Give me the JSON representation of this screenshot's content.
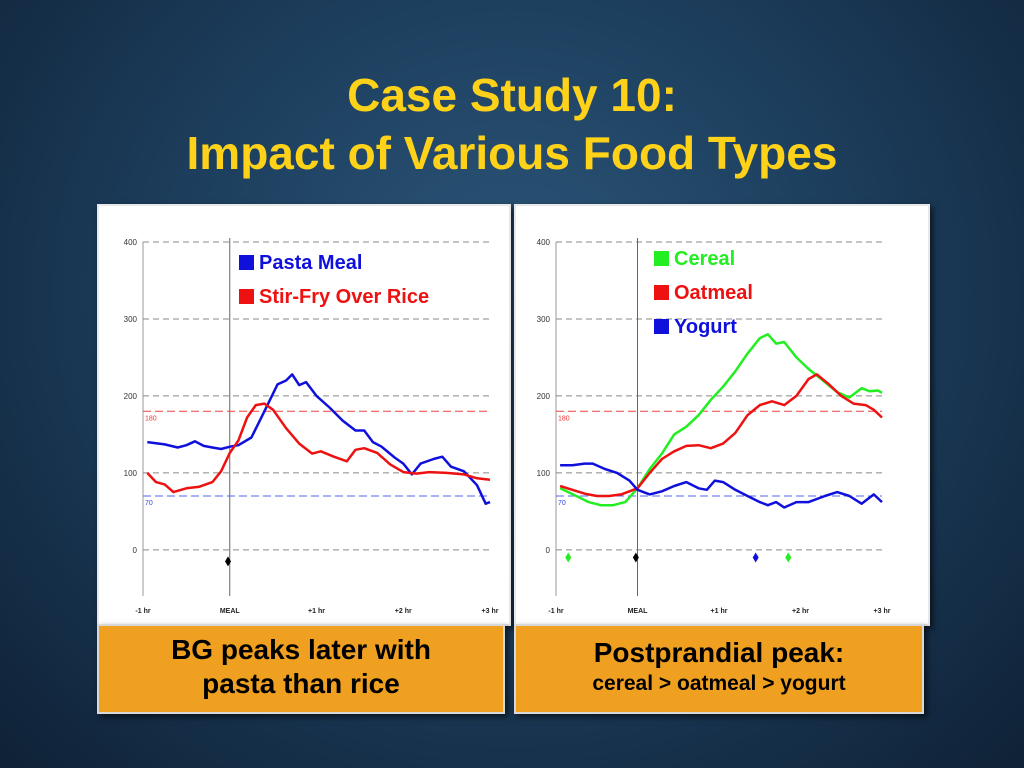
{
  "slide": {
    "title_line1": "Case Study 10:",
    "title_line2": "Impact of Various Food Types",
    "caption_left_line1": "BG peaks later with",
    "caption_left_line2": "pasta than rice",
    "caption_right_line1": "Postprandial peak:",
    "caption_right_line2": "cereal > oatmeal > yogurt"
  },
  "colors": {
    "title": "#ffd21a",
    "blue": "#1010dd",
    "red": "#ee1111",
    "green": "#22ee22",
    "caption_bg": "#f0a020"
  },
  "chart_data": [
    {
      "type": "line",
      "x_unit": "hours relative to meal",
      "xlim": [
        -1,
        3
      ],
      "ylim": [
        -60,
        400
      ],
      "y_ticks": [
        0,
        100,
        200,
        300,
        400
      ],
      "x_ticks": [
        {
          "x": -1,
          "label": "-1 hr"
        },
        {
          "x": 0,
          "label": "MEAL"
        },
        {
          "x": 1,
          "label": "+1 hr"
        },
        {
          "x": 2,
          "label": "+2 hr"
        },
        {
          "x": 3,
          "label": "+3 hr"
        }
      ],
      "threshold_high": {
        "value": 180,
        "label": "180"
      },
      "threshold_low": {
        "value": 70,
        "label": "70"
      },
      "meal_markers": [
        {
          "x": -0.02,
          "y": -15,
          "color": "#000000"
        }
      ],
      "series": [
        {
          "name": "Pasta Meal",
          "color": "#1010dd",
          "points": [
            [
              -0.95,
              140
            ],
            [
              -0.75,
              137
            ],
            [
              -0.6,
              133
            ],
            [
              -0.5,
              136
            ],
            [
              -0.4,
              141
            ],
            [
              -0.3,
              135
            ],
            [
              -0.2,
              133
            ],
            [
              -0.1,
              131
            ],
            [
              0,
              134
            ],
            [
              0.1,
              136
            ],
            [
              0.25,
              146
            ],
            [
              0.4,
              180
            ],
            [
              0.55,
              215
            ],
            [
              0.65,
              220
            ],
            [
              0.72,
              228
            ],
            [
              0.8,
              214
            ],
            [
              0.88,
              218
            ],
            [
              1.0,
              200
            ],
            [
              1.15,
              185
            ],
            [
              1.3,
              168
            ],
            [
              1.45,
              155
            ],
            [
              1.55,
              155
            ],
            [
              1.65,
              140
            ],
            [
              1.75,
              134
            ],
            [
              1.9,
              120
            ],
            [
              2.0,
              112
            ],
            [
              2.1,
              98
            ],
            [
              2.2,
              112
            ],
            [
              2.35,
              118
            ],
            [
              2.45,
              121
            ],
            [
              2.55,
              108
            ],
            [
              2.7,
              102
            ],
            [
              2.85,
              84
            ],
            [
              2.95,
              60
            ],
            [
              3.0,
              62
            ]
          ]
        },
        {
          "name": "Stir-Fry Over Rice",
          "color": "#ee1111",
          "points": [
            [
              -0.95,
              100
            ],
            [
              -0.85,
              88
            ],
            [
              -0.75,
              85
            ],
            [
              -0.65,
              75
            ],
            [
              -0.5,
              80
            ],
            [
              -0.35,
              82
            ],
            [
              -0.2,
              88
            ],
            [
              -0.1,
              102
            ],
            [
              0,
              126
            ],
            [
              0.1,
              142
            ],
            [
              0.2,
              172
            ],
            [
              0.3,
              188
            ],
            [
              0.4,
              190
            ],
            [
              0.5,
              182
            ],
            [
              0.65,
              158
            ],
            [
              0.8,
              138
            ],
            [
              0.95,
              125
            ],
            [
              1.05,
              128
            ],
            [
              1.2,
              121
            ],
            [
              1.35,
              115
            ],
            [
              1.45,
              130
            ],
            [
              1.55,
              132
            ],
            [
              1.7,
              126
            ],
            [
              1.85,
              111
            ],
            [
              2.0,
              101
            ],
            [
              2.15,
              99
            ],
            [
              2.3,
              101
            ],
            [
              2.5,
              100
            ],
            [
              2.7,
              98
            ],
            [
              2.85,
              93
            ],
            [
              3.0,
              91
            ]
          ]
        }
      ],
      "legend": [
        "Pasta Meal",
        "Stir-Fry Over Rice"
      ]
    },
    {
      "type": "line",
      "x_unit": "hours relative to meal",
      "xlim": [
        -1,
        3
      ],
      "ylim": [
        -60,
        400
      ],
      "y_ticks": [
        0,
        100,
        200,
        300,
        400
      ],
      "x_ticks": [
        {
          "x": -1,
          "label": "-1 hr"
        },
        {
          "x": 0,
          "label": "MEAL"
        },
        {
          "x": 1,
          "label": "+1 hr"
        },
        {
          "x": 2,
          "label": "+2 hr"
        },
        {
          "x": 3,
          "label": "+3 hr"
        }
      ],
      "threshold_high": {
        "value": 180,
        "label": "180"
      },
      "threshold_low": {
        "value": 70,
        "label": "70"
      },
      "meal_markers": [
        {
          "x": -0.85,
          "y": -10,
          "color": "#22ee22"
        },
        {
          "x": -0.02,
          "y": -10,
          "color": "#000000"
        },
        {
          "x": 1.45,
          "y": -10,
          "color": "#1010dd"
        },
        {
          "x": 1.85,
          "y": -10,
          "color": "#22ee22"
        }
      ],
      "series": [
        {
          "name": "Cereal",
          "color": "#22ee22",
          "points": [
            [
              -0.95,
              80
            ],
            [
              -0.75,
              70
            ],
            [
              -0.6,
              62
            ],
            [
              -0.45,
              58
            ],
            [
              -0.3,
              58
            ],
            [
              -0.15,
              62
            ],
            [
              0,
              80
            ],
            [
              0.15,
              105
            ],
            [
              0.3,
              125
            ],
            [
              0.45,
              150
            ],
            [
              0.6,
              160
            ],
            [
              0.75,
              175
            ],
            [
              0.9,
              195
            ],
            [
              1.05,
              212
            ],
            [
              1.2,
              232
            ],
            [
              1.35,
              255
            ],
            [
              1.5,
              275
            ],
            [
              1.6,
              280
            ],
            [
              1.7,
              268
            ],
            [
              1.8,
              270
            ],
            [
              1.95,
              250
            ],
            [
              2.1,
              235
            ],
            [
              2.3,
              218
            ],
            [
              2.45,
              205
            ],
            [
              2.6,
              198
            ],
            [
              2.75,
              210
            ],
            [
              2.85,
              206
            ],
            [
              2.95,
              207
            ],
            [
              3.0,
              204
            ]
          ]
        },
        {
          "name": "Oatmeal",
          "color": "#ee1111",
          "points": [
            [
              -0.95,
              83
            ],
            [
              -0.8,
              78
            ],
            [
              -0.65,
              73
            ],
            [
              -0.5,
              70
            ],
            [
              -0.35,
              70
            ],
            [
              -0.2,
              72
            ],
            [
              0,
              80
            ],
            [
              0.15,
              100
            ],
            [
              0.3,
              118
            ],
            [
              0.45,
              128
            ],
            [
              0.6,
              135
            ],
            [
              0.75,
              136
            ],
            [
              0.9,
              132
            ],
            [
              1.05,
              138
            ],
            [
              1.2,
              152
            ],
            [
              1.35,
              175
            ],
            [
              1.5,
              188
            ],
            [
              1.65,
              193
            ],
            [
              1.8,
              188
            ],
            [
              1.95,
              200
            ],
            [
              2.1,
              222
            ],
            [
              2.2,
              228
            ],
            [
              2.35,
              215
            ],
            [
              2.5,
              200
            ],
            [
              2.65,
              190
            ],
            [
              2.8,
              188
            ],
            [
              2.9,
              182
            ],
            [
              3.0,
              172
            ]
          ]
        },
        {
          "name": "Yogurt",
          "color": "#1010dd",
          "points": [
            [
              -0.95,
              110
            ],
            [
              -0.8,
              110
            ],
            [
              -0.65,
              112
            ],
            [
              -0.55,
              112
            ],
            [
              -0.4,
              105
            ],
            [
              -0.25,
              100
            ],
            [
              -0.1,
              90
            ],
            [
              0,
              78
            ],
            [
              0.15,
              72
            ],
            [
              0.3,
              76
            ],
            [
              0.45,
              83
            ],
            [
              0.6,
              88
            ],
            [
              0.75,
              80
            ],
            [
              0.85,
              78
            ],
            [
              0.95,
              90
            ],
            [
              1.05,
              88
            ],
            [
              1.2,
              78
            ],
            [
              1.35,
              70
            ],
            [
              1.5,
              62
            ],
            [
              1.6,
              58
            ],
            [
              1.7,
              62
            ],
            [
              1.8,
              55
            ],
            [
              1.95,
              62
            ],
            [
              2.1,
              62
            ],
            [
              2.3,
              70
            ],
            [
              2.45,
              75
            ],
            [
              2.6,
              70
            ],
            [
              2.75,
              60
            ],
            [
              2.9,
              72
            ],
            [
              3.0,
              62
            ]
          ]
        }
      ],
      "legend": [
        "Cereal",
        "Oatmeal",
        "Yogurt"
      ]
    }
  ]
}
